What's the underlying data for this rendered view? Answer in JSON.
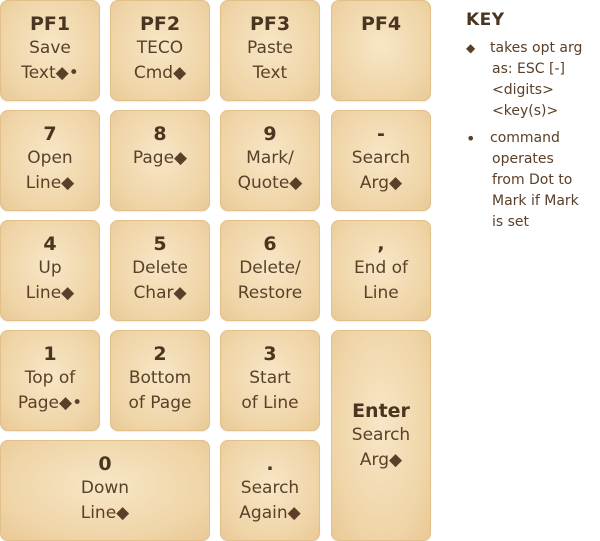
{
  "keys": [
    {
      "id": "pf1",
      "title": "PF1",
      "lines": [
        "Save",
        "Text◆•"
      ]
    },
    {
      "id": "pf2",
      "title": "PF2",
      "lines": [
        "TECO",
        "Cmd◆"
      ]
    },
    {
      "id": "pf3",
      "title": "PF3",
      "lines": [
        "Paste",
        "Text"
      ]
    },
    {
      "id": "pf4",
      "title": "PF4",
      "lines": []
    },
    {
      "id": "7",
      "title": "7",
      "lines": [
        "Open",
        "Line◆"
      ]
    },
    {
      "id": "8",
      "title": "8",
      "lines": [
        "Page◆"
      ]
    },
    {
      "id": "9",
      "title": "9",
      "lines": [
        "Mark/",
        "Quote◆"
      ]
    },
    {
      "id": "minus",
      "title": "-",
      "lines": [
        "Search",
        "Arg◆"
      ]
    },
    {
      "id": "4",
      "title": "4",
      "lines": [
        "Up",
        "Line◆"
      ]
    },
    {
      "id": "5",
      "title": "5",
      "lines": [
        "Delete",
        "Char◆"
      ]
    },
    {
      "id": "6",
      "title": "6",
      "lines": [
        "Delete/",
        "Restore"
      ]
    },
    {
      "id": "comma",
      "title": ",",
      "lines": [
        "End of",
        "Line"
      ]
    },
    {
      "id": "1",
      "title": "1",
      "lines": [
        "Top of",
        "Page◆•"
      ]
    },
    {
      "id": "2",
      "title": "2",
      "lines": [
        "Bottom",
        "of Page"
      ]
    },
    {
      "id": "3",
      "title": "3",
      "lines": [
        "Start",
        "of Line"
      ]
    },
    {
      "id": "enter",
      "title": "Enter",
      "lines": [
        "Search",
        "Arg◆"
      ]
    },
    {
      "id": "0",
      "title": "0",
      "lines": [
        "Down",
        "Line◆"
      ]
    },
    {
      "id": "period",
      "title": ".",
      "lines": [
        "Search",
        "Again◆"
      ]
    }
  ],
  "legend": {
    "heading": "KEY",
    "items": [
      {
        "bullet": "◆",
        "lines": [
          "takes opt arg",
          "as: ESC [-]",
          "<digits>",
          "<key(s)>"
        ]
      },
      {
        "bullet": "•",
        "lines": [
          "command",
          "operates",
          "from Dot to",
          "Mark if Mark",
          "is set"
        ]
      }
    ]
  },
  "colors": {
    "key_fill": "#efd4a6",
    "key_text": "#4a3520"
  }
}
